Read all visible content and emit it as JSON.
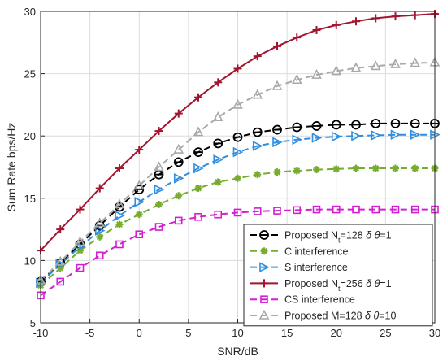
{
  "chart_data": {
    "type": "line",
    "title": "",
    "xlabel": "SNR/dB",
    "ylabel": "Sum Rate bps/Hz",
    "xlim": [
      -10,
      30
    ],
    "ylim": [
      5,
      30
    ],
    "xticks": [
      -10,
      -5,
      0,
      5,
      10,
      15,
      20,
      25,
      30
    ],
    "yticks": [
      5,
      10,
      15,
      20,
      25,
      30
    ],
    "xtick_labels": [
      "-10",
      "-5",
      "0",
      "5",
      "10",
      "15",
      "20",
      "25",
      "30"
    ],
    "ytick_labels": [
      "5",
      "10",
      "15",
      "20",
      "25",
      "30"
    ],
    "grid": true,
    "legend_position": "bottom-right",
    "x": [
      -10,
      -8,
      -6,
      -4,
      -2,
      0,
      2,
      4,
      6,
      8,
      10,
      12,
      14,
      16,
      18,
      20,
      22,
      24,
      26,
      28,
      30
    ],
    "series": [
      {
        "name": "Proposed N_t=128  δ θ=1",
        "legend_parts": [
          "Proposed N",
          "t",
          "=128  ",
          "δ θ",
          "=1"
        ],
        "color": "#000000",
        "dash": "dashed",
        "marker": "circle-bar",
        "values": [
          8.3,
          9.8,
          11.3,
          12.8,
          14.3,
          15.7,
          16.9,
          17.9,
          18.7,
          19.4,
          19.9,
          20.3,
          20.5,
          20.7,
          20.8,
          20.9,
          20.9,
          21.0,
          21.0,
          21.0,
          21.0
        ]
      },
      {
        "name": "C interference",
        "legend_parts": [
          "C interference"
        ],
        "color": "#77ac30",
        "dash": "dashed",
        "marker": "asterisk",
        "values": [
          8.0,
          9.4,
          10.8,
          11.9,
          12.9,
          13.7,
          14.5,
          15.2,
          15.8,
          16.3,
          16.6,
          16.9,
          17.1,
          17.2,
          17.3,
          17.35,
          17.4,
          17.4,
          17.4,
          17.4,
          17.4
        ]
      },
      {
        "name": "S interference",
        "legend_parts": [
          "S interference"
        ],
        "color": "#2e8ee0",
        "dash": "dashed",
        "marker": "triangle-right",
        "values": [
          8.2,
          9.7,
          11.1,
          12.4,
          13.6,
          14.7,
          15.7,
          16.6,
          17.4,
          18.1,
          18.7,
          19.2,
          19.5,
          19.7,
          19.85,
          19.95,
          20.0,
          20.05,
          20.1,
          20.1,
          20.1
        ]
      },
      {
        "name": "Proposed N_t=256  δ θ=1",
        "legend_parts": [
          "Proposed N",
          "t",
          "=256  ",
          "δ θ",
          "=1"
        ],
        "color": "#a2142f",
        "dash": "solid",
        "marker": "plus",
        "values": [
          10.8,
          12.5,
          14.1,
          15.8,
          17.4,
          18.9,
          20.4,
          21.8,
          23.1,
          24.3,
          25.4,
          26.4,
          27.2,
          27.9,
          28.5,
          28.9,
          29.2,
          29.45,
          29.6,
          29.7,
          29.8
        ]
      },
      {
        "name": "CS interference",
        "legend_parts": [
          "CS interference"
        ],
        "color": "#d21fd2",
        "dash": "dashed",
        "marker": "square",
        "values": [
          7.2,
          8.3,
          9.4,
          10.4,
          11.3,
          12.1,
          12.7,
          13.2,
          13.5,
          13.7,
          13.85,
          13.95,
          14.0,
          14.05,
          14.1,
          14.1,
          14.1,
          14.1,
          14.1,
          14.1,
          14.1
        ]
      },
      {
        "name": "Proposed M=128  δ θ=10",
        "legend_parts": [
          "Proposed M=128  ",
          "δ θ",
          "=10"
        ],
        "color": "#a9a9a9",
        "dash": "dashed",
        "marker": "triangle-up",
        "values": [
          8.4,
          9.9,
          11.5,
          13.0,
          14.5,
          16.0,
          17.5,
          18.9,
          20.3,
          21.5,
          22.5,
          23.3,
          24.0,
          24.5,
          24.9,
          25.2,
          25.45,
          25.6,
          25.75,
          25.85,
          25.9
        ]
      }
    ]
  }
}
